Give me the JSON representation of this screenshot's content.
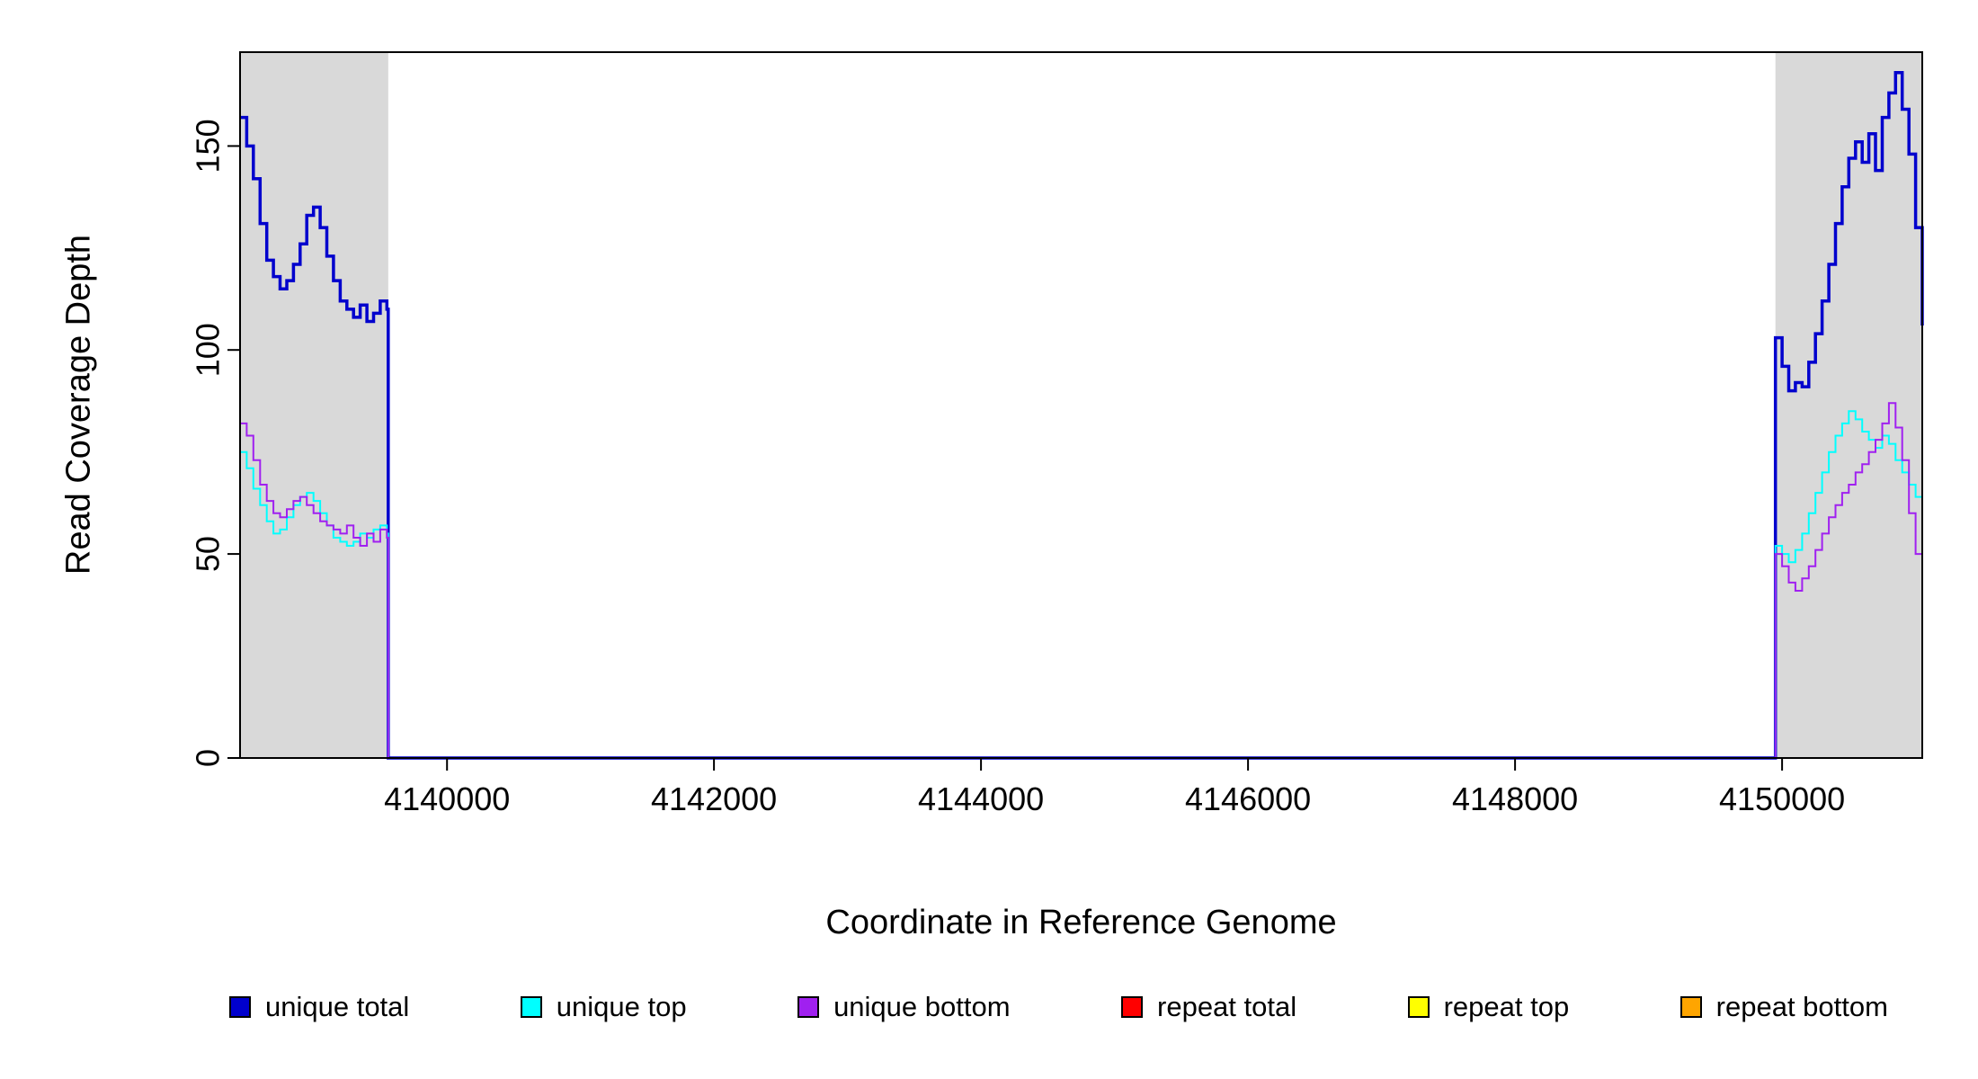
{
  "chart_data": {
    "type": "line",
    "title": "",
    "xlabel": "Coordinate in Reference Genome",
    "ylabel": "Read Coverage Depth",
    "xlim": [
      4138450,
      4151050
    ],
    "ylim": [
      0,
      173
    ],
    "xticks": [
      4140000,
      4142000,
      4144000,
      4146000,
      4148000,
      4150000
    ],
    "yticks": [
      0,
      50,
      100,
      150
    ],
    "grid": false,
    "step_interpolation": true,
    "legend_position": "bottom",
    "shade_color": "#d9d9d9",
    "shaded_regions": [
      [
        4138450,
        4139560
      ],
      [
        4149950,
        4151050
      ]
    ],
    "series": [
      {
        "name": "unique total",
        "color": "#0000cd",
        "width": 3.5,
        "segments": [
          {
            "x": [
              4138450,
              4138500,
              4138550,
              4138600,
              4138650,
              4138700,
              4138750,
              4138800,
              4138850,
              4138900,
              4138950,
              4139000,
              4139050,
              4139100,
              4139150,
              4139200,
              4139250,
              4139300,
              4139350,
              4139400,
              4139450,
              4139500,
              4139550,
              4139560,
              4149950,
              4149950,
              4150000,
              4150050,
              4150100,
              4150150,
              4150200,
              4150250,
              4150300,
              4150350,
              4150400,
              4150450,
              4150500,
              4150550,
              4150600,
              4150650,
              4150700,
              4150750,
              4150800,
              4150850,
              4150900,
              4150950,
              4151000,
              4151050
            ],
            "y": [
              157,
              150,
              142,
              131,
              122,
              118,
              115,
              117,
              121,
              126,
              133,
              135,
              130,
              123,
              117,
              112,
              110,
              108,
              111,
              107,
              109,
              112,
              110,
              0,
              0,
              103,
              96,
              90,
              92,
              91,
              97,
              104,
              112,
              121,
              131,
              140,
              147,
              151,
              146,
              153,
              144,
              157,
              163,
              168,
              159,
              148,
              130,
              106
            ]
          }
        ]
      },
      {
        "name": "unique top",
        "color": "#00ffff",
        "width": 2,
        "segments": [
          {
            "x": [
              4138450,
              4138500,
              4138550,
              4138600,
              4138650,
              4138700,
              4138750,
              4138800,
              4138850,
              4138900,
              4138950,
              4139000,
              4139050,
              4139100,
              4139150,
              4139200,
              4139250,
              4139300,
              4139350,
              4139400,
              4139450,
              4139500,
              4139550,
              4139560,
              4149950,
              4149950,
              4150000,
              4150050,
              4150100,
              4150150,
              4150200,
              4150250,
              4150300,
              4150350,
              4150400,
              4150450,
              4150500,
              4150550,
              4150600,
              4150650,
              4150700,
              4150750,
              4150800,
              4150850,
              4150900,
              4150950,
              4151000,
              4151050
            ],
            "y": [
              75,
              71,
              66,
              62,
              58,
              55,
              56,
              59,
              62,
              64,
              65,
              63,
              60,
              57,
              54,
              53,
              52,
              53,
              55,
              54,
              56,
              57,
              55,
              0,
              0,
              52,
              50,
              48,
              51,
              55,
              60,
              65,
              70,
              75,
              79,
              82,
              85,
              83,
              80,
              78,
              76,
              79,
              77,
              73,
              70,
              67,
              64,
              62
            ]
          }
        ]
      },
      {
        "name": "unique bottom",
        "color": "#a020f0",
        "width": 2,
        "segments": [
          {
            "x": [
              4138450,
              4138500,
              4138550,
              4138600,
              4138650,
              4138700,
              4138750,
              4138800,
              4138850,
              4138900,
              4138950,
              4139000,
              4139050,
              4139100,
              4139150,
              4139200,
              4139250,
              4139300,
              4139350,
              4139400,
              4139450,
              4139500,
              4139550,
              4139560,
              4149950,
              4149950,
              4150000,
              4150050,
              4150100,
              4150150,
              4150200,
              4150250,
              4150300,
              4150350,
              4150400,
              4150450,
              4150500,
              4150550,
              4150600,
              4150650,
              4150700,
              4150750,
              4150800,
              4150850,
              4150900,
              4150950,
              4151000,
              4151050
            ],
            "y": [
              82,
              79,
              73,
              67,
              63,
              60,
              59,
              61,
              63,
              64,
              62,
              60,
              58,
              57,
              56,
              55,
              57,
              54,
              52,
              55,
              53,
              56,
              54,
              0,
              0,
              50,
              47,
              43,
              41,
              44,
              47,
              51,
              55,
              59,
              62,
              65,
              67,
              70,
              72,
              75,
              78,
              82,
              87,
              81,
              73,
              60,
              50,
              46
            ]
          }
        ]
      },
      {
        "name": "repeat total",
        "color": "#ff0000",
        "width": 2,
        "segments": [
          {
            "x": [
              4138450,
              4139560
            ],
            "y": [
              0,
              0
            ]
          },
          {
            "x": [
              4149950,
              4151050
            ],
            "y": [
              0,
              0
            ]
          }
        ]
      },
      {
        "name": "repeat top",
        "color": "#ffff00",
        "width": 2,
        "segments": [
          {
            "x": [
              4138450,
              4139560
            ],
            "y": [
              0,
              0
            ]
          },
          {
            "x": [
              4149950,
              4151050
            ],
            "y": [
              0,
              0
            ]
          }
        ]
      },
      {
        "name": "repeat bottom",
        "color": "#ffa500",
        "width": 2,
        "segments": [
          {
            "x": [
              4138450,
              4139560
            ],
            "y": [
              0,
              0
            ]
          },
          {
            "x": [
              4149950,
              4151050
            ],
            "y": [
              0,
              0
            ]
          }
        ]
      }
    ]
  },
  "legend": {
    "items": [
      {
        "label": "unique total",
        "color": "#0000cd"
      },
      {
        "label": "unique top",
        "color": "#00ffff"
      },
      {
        "label": "unique bottom",
        "color": "#a020f0"
      },
      {
        "label": "repeat total",
        "color": "#ff0000"
      },
      {
        "label": "repeat top",
        "color": "#ffff00"
      },
      {
        "label": "repeat bottom",
        "color": "#ffa500"
      }
    ]
  }
}
